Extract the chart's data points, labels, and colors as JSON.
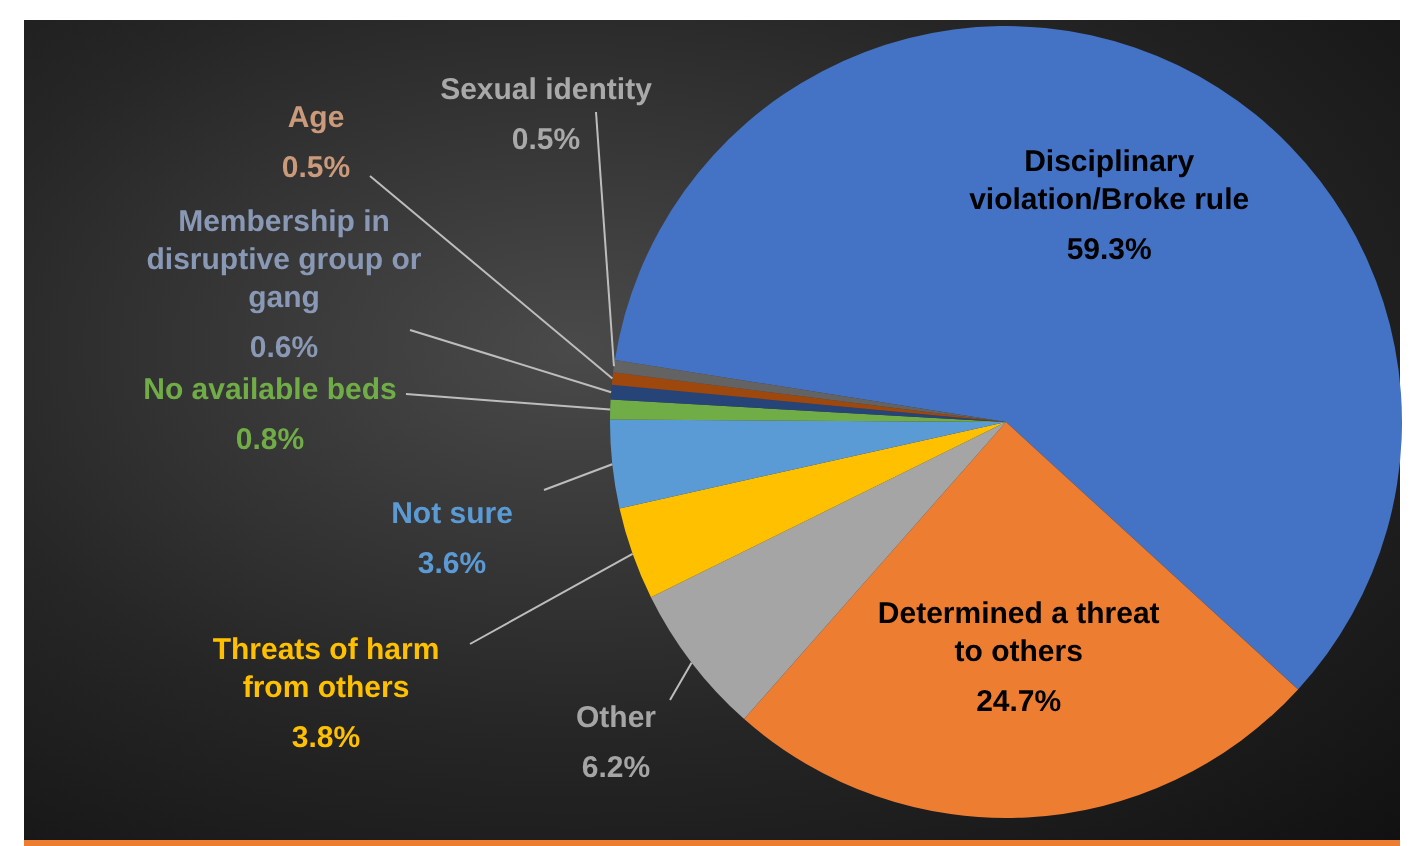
{
  "chart_data": {
    "type": "pie",
    "categories": [
      "Disciplinary violation/Broke rule",
      "Determined a threat to others",
      "Other",
      "Threats of harm from others",
      "Not sure",
      "No available beds",
      "Membership in disruptive group or gang",
      "Age",
      "Sexual identity"
    ],
    "values": [
      59.3,
      24.7,
      6.2,
      3.8,
      3.6,
      0.8,
      0.6,
      0.5,
      0.5
    ],
    "value_labels": [
      "59.3%",
      "24.7%",
      "6.2%",
      "3.8%",
      "3.6%",
      "0.8%",
      "0.6%",
      "0.5%",
      "0.5%"
    ],
    "colors": [
      "#4472c4",
      "#ed7d31",
      "#a5a5a5",
      "#ffc000",
      "#5b9bd5",
      "#70ad47",
      "#264478",
      "#9e480e",
      "#636363"
    ],
    "legend": false
  }
}
